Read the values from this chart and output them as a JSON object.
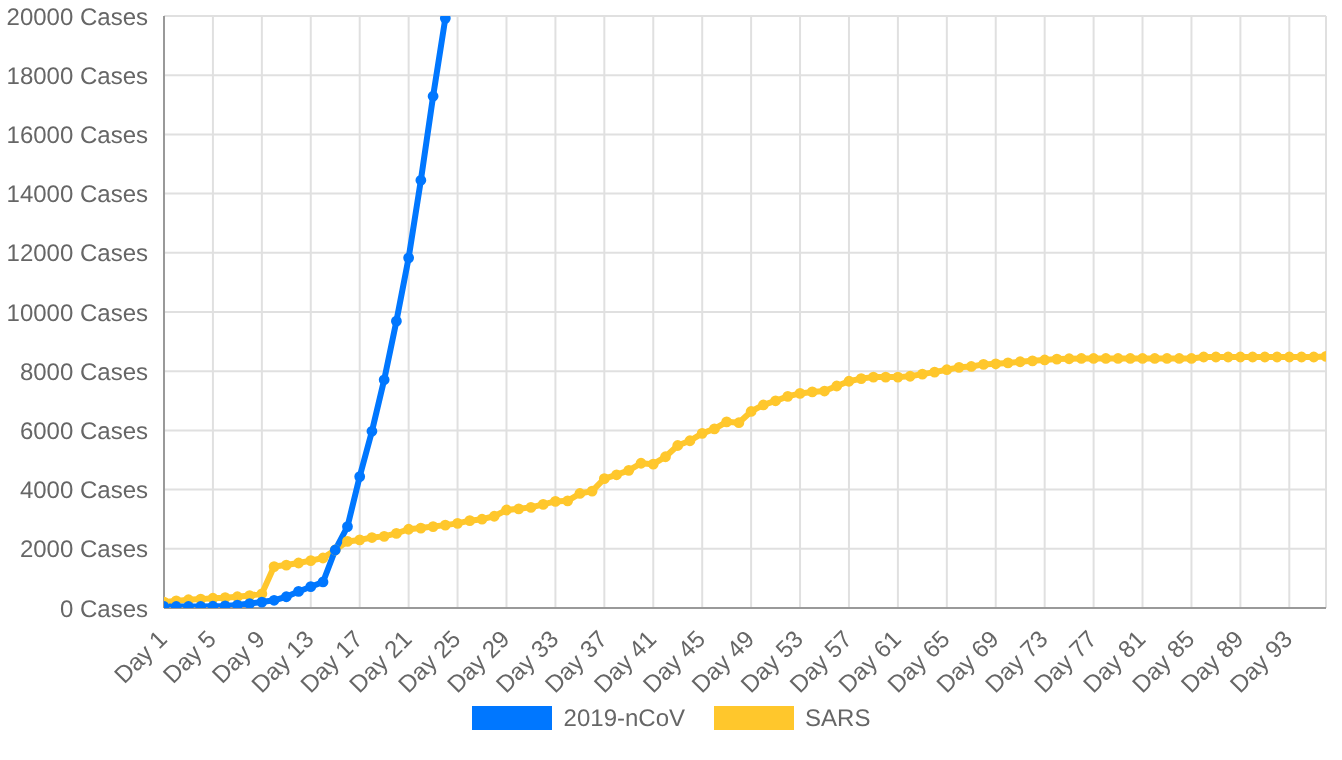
{
  "chart_data": {
    "type": "line",
    "categories": [
      "Day 1",
      null,
      null,
      null,
      "Day 5",
      null,
      null,
      null,
      "Day 9",
      null,
      null,
      null,
      "Day 13",
      null,
      null,
      null,
      "Day 17",
      null,
      null,
      null,
      "Day 21",
      null,
      null,
      null,
      "Day 25",
      null,
      null,
      null,
      "Day 29",
      null,
      null,
      null,
      "Day 33",
      null,
      null,
      null,
      "Day 37",
      null,
      null,
      null,
      "Day 41",
      null,
      null,
      null,
      "Day 45",
      null,
      null,
      null,
      "Day 49",
      null,
      null,
      null,
      "Day 53",
      null,
      null,
      null,
      "Day 57",
      null,
      null,
      null,
      "Day 61",
      null,
      null,
      null,
      "Day 65",
      null,
      null,
      null,
      "Day 69",
      null,
      null,
      null,
      "Day 73",
      null,
      null,
      null,
      "Day 77",
      null,
      null,
      null,
      "Day 81",
      null,
      null,
      null,
      "Day 85",
      null,
      null,
      null,
      "Day 89",
      null,
      null,
      null,
      "Day 93",
      null,
      null,
      null
    ],
    "series": [
      {
        "name": "2019-nCoV",
        "color": "#0077ff",
        "values": [
          50,
          50,
          50,
          50,
          60,
          70,
          100,
          150,
          200,
          260,
          380,
          560,
          720,
          880,
          1960,
          2750,
          4440,
          5970,
          7710,
          9690,
          11830,
          14450,
          17290,
          19920,
          null,
          null,
          null,
          null,
          null,
          null,
          null,
          null,
          null,
          null,
          null,
          null,
          null,
          null,
          null,
          null,
          null,
          null,
          null,
          null,
          null,
          null,
          null,
          null,
          null,
          null,
          null,
          null,
          null,
          null,
          null,
          null,
          null,
          null,
          null,
          null,
          null,
          null,
          null,
          null,
          null,
          null,
          null,
          null,
          null,
          null,
          null,
          null,
          null,
          null,
          null,
          null,
          null,
          null,
          null,
          null,
          null,
          null,
          null,
          null,
          null,
          null,
          null,
          null,
          null,
          null,
          null,
          null,
          null,
          null,
          null,
          null
        ]
      },
      {
        "name": "SARS",
        "color": "#ffc72c",
        "values": [
          200,
          240,
          280,
          300,
          330,
          350,
          380,
          420,
          480,
          1400,
          1450,
          1520,
          1600,
          1690,
          1960,
          2250,
          2300,
          2380,
          2420,
          2520,
          2660,
          2700,
          2750,
          2800,
          2860,
          2950,
          3000,
          3100,
          3310,
          3350,
          3400,
          3500,
          3600,
          3620,
          3870,
          3950,
          4370,
          4500,
          4650,
          4890,
          4860,
          5110,
          5490,
          5650,
          5900,
          6050,
          6290,
          6260,
          6640,
          6860,
          7000,
          7150,
          7250,
          7300,
          7330,
          7500,
          7660,
          7750,
          7800,
          7800,
          7800,
          7830,
          7900,
          7970,
          8050,
          8130,
          8160,
          8230,
          8250,
          8280,
          8320,
          8350,
          8380,
          8410,
          8420,
          8430,
          8430,
          8430,
          8430,
          8430,
          8430,
          8430,
          8430,
          8430,
          8430,
          8480,
          8480,
          8480,
          8480,
          8480,
          8480,
          8480,
          8480,
          8480,
          8480,
          8500
        ]
      }
    ],
    "ylim": [
      0,
      20000
    ],
    "yticks": [
      {
        "value": 0,
        "label": "0 Cases"
      },
      {
        "value": 2000,
        "label": "2000 Cases"
      },
      {
        "value": 4000,
        "label": "4000 Cases"
      },
      {
        "value": 6000,
        "label": "6000 Cases"
      },
      {
        "value": 8000,
        "label": "8000 Cases"
      },
      {
        "value": 10000,
        "label": "10000 Cases"
      },
      {
        "value": 12000,
        "label": "12000 Cases"
      },
      {
        "value": 14000,
        "label": "14000 Cases"
      },
      {
        "value": 16000,
        "label": "16000 Cases"
      },
      {
        "value": 18000,
        "label": "18000 Cases"
      },
      {
        "value": 20000,
        "label": "20000 Cases"
      }
    ],
    "grid": true,
    "legend": "bottom",
    "marker": "circle",
    "line_style": "solid"
  }
}
